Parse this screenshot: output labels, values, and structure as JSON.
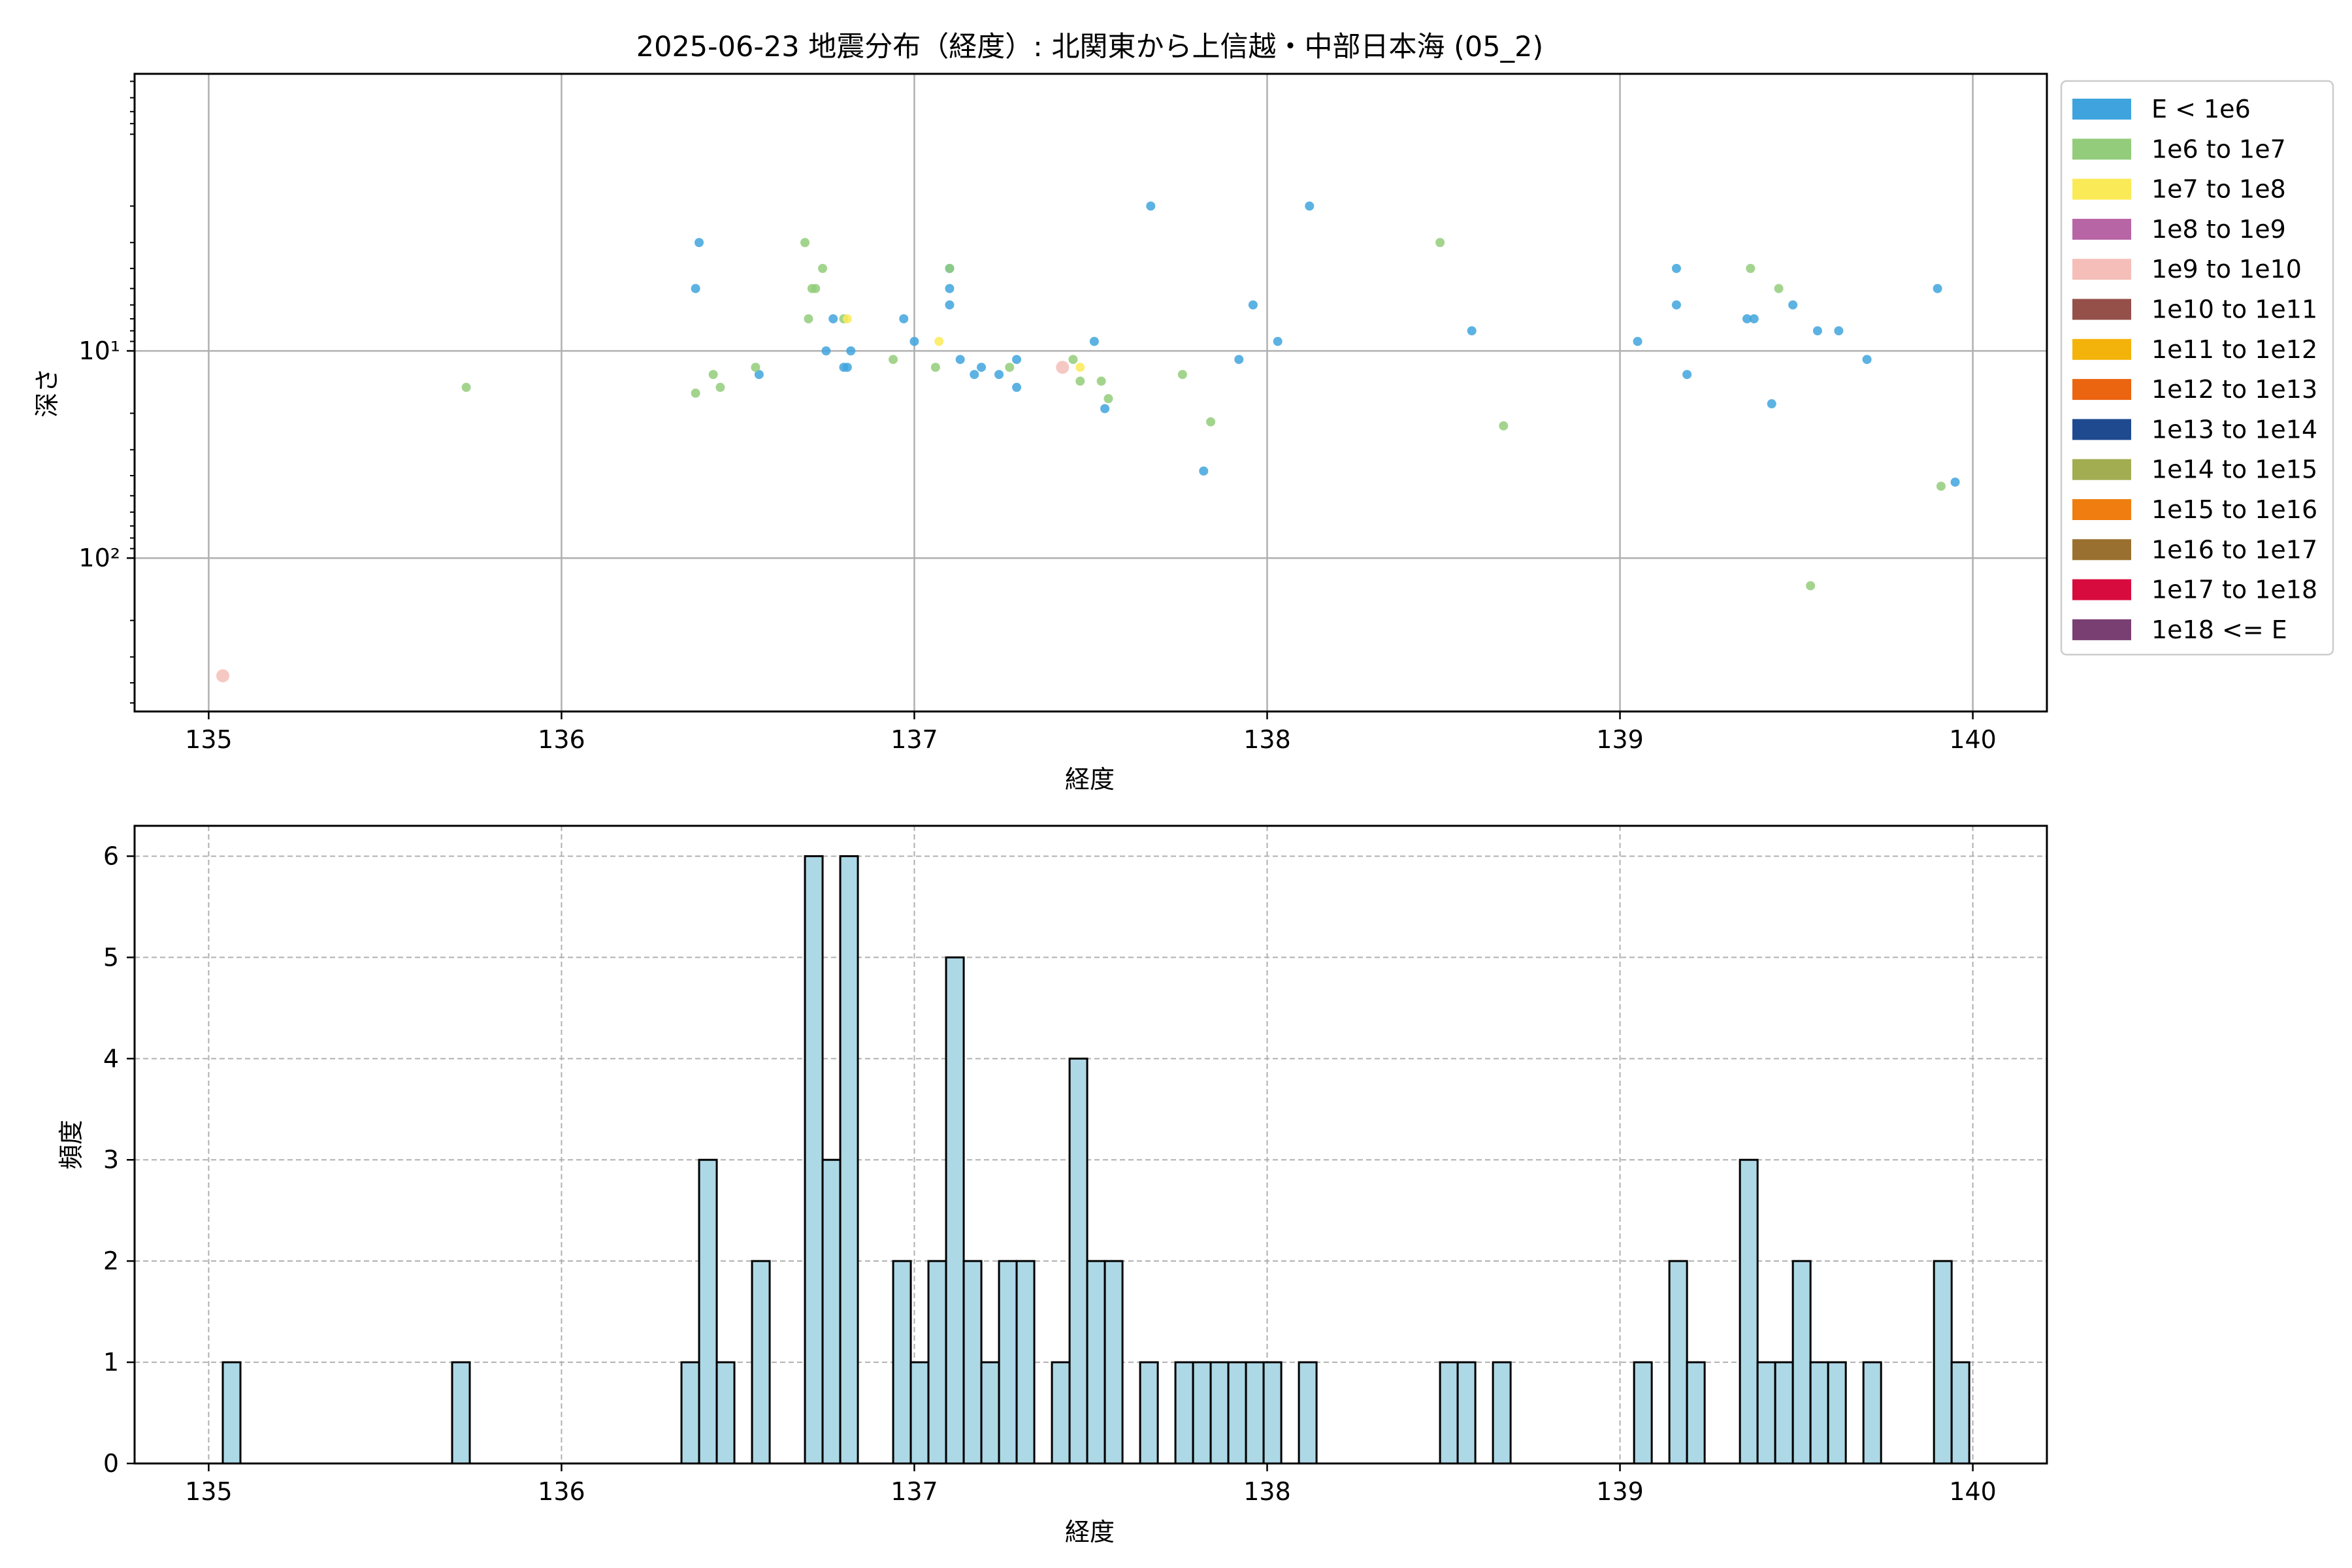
{
  "chart_data": [
    {
      "type": "scatter",
      "title": "2025-06-23 地震分布（経度）: 北関東から上信越・中部日本海 (05_2)",
      "xlabel": "経度",
      "ylabel": "深さ",
      "xlim": [
        134.79,
        140.21
      ],
      "ylim": [
        550,
        0.46
      ],
      "yscale": "log",
      "y_inverted": true,
      "xticks": [
        135,
        136,
        137,
        138,
        139,
        140
      ],
      "yticks": [
        {
          "value": 10,
          "label": "10¹"
        },
        {
          "value": 100,
          "label": "10²"
        }
      ],
      "grid": true,
      "legend": {
        "placement": "outside-right",
        "entries": [
          {
            "label": "E < 1e6",
            "color": "#3fa4dd"
          },
          {
            "label": "1e6 to 1e7",
            "color": "#93cc7a"
          },
          {
            "label": "1e7 to 1e8",
            "color": "#fbea58"
          },
          {
            "label": "1e8 to 1e9",
            "color": "#b865a6"
          },
          {
            "label": "1e9 to 1e10",
            "color": "#f5beb9"
          },
          {
            "label": "1e10 to 1e11",
            "color": "#955049"
          },
          {
            "label": "1e11 to 1e12",
            "color": "#f4b30b"
          },
          {
            "label": "1e12 to 1e13",
            "color": "#eb6410"
          },
          {
            "label": "1e13 to 1e14",
            "color": "#1f4a90"
          },
          {
            "label": "1e14 to 1e15",
            "color": "#a2ad52"
          },
          {
            "label": "1e15 to 1e16",
            "color": "#f07d0f"
          },
          {
            "label": "1e16 to 1e17",
            "color": "#997030"
          },
          {
            "label": "1e17 to 1e18",
            "color": "#d80b3e"
          },
          {
            "label": "1e18 <= E",
            "color": "#793f73"
          }
        ]
      },
      "series": [
        {
          "class": 0,
          "points": [
            [
              136.39,
              3.0
            ],
            [
              136.38,
              5.0
            ],
            [
              136.56,
              13.0
            ],
            [
              136.75,
              10.0
            ],
            [
              136.77,
              7.0
            ],
            [
              136.8,
              12.0
            ],
            [
              136.81,
              12.0
            ],
            [
              136.82,
              10.0
            ],
            [
              136.97,
              7.0
            ],
            [
              137.0,
              9.0
            ],
            [
              137.1,
              6.0
            ],
            [
              137.1,
              5.0
            ],
            [
              137.1,
              4.0
            ],
            [
              137.13,
              11.0
            ],
            [
              137.17,
              13.0
            ],
            [
              137.19,
              12.0
            ],
            [
              137.24,
              13.0
            ],
            [
              137.29,
              11.0
            ],
            [
              137.29,
              15.0
            ],
            [
              137.51,
              9.0
            ],
            [
              137.54,
              19.0
            ],
            [
              137.67,
              2.0
            ],
            [
              137.82,
              38.0
            ],
            [
              137.92,
              11.0
            ],
            [
              137.96,
              6.0
            ],
            [
              138.03,
              9.0
            ],
            [
              138.12,
              2.0
            ],
            [
              138.58,
              8.0
            ],
            [
              139.05,
              9.0
            ],
            [
              139.16,
              4.0
            ],
            [
              139.16,
              6.0
            ],
            [
              139.19,
              13.0
            ],
            [
              139.36,
              7.0
            ],
            [
              139.38,
              7.0
            ],
            [
              139.43,
              18.0
            ],
            [
              139.49,
              6.0
            ],
            [
              139.56,
              8.0
            ],
            [
              139.62,
              8.0
            ],
            [
              139.7,
              11.0
            ],
            [
              139.9,
              5.0
            ],
            [
              139.95,
              43.0
            ]
          ]
        },
        {
          "class": 1,
          "points": [
            [
              135.73,
              15.0
            ],
            [
              136.38,
              16.0
            ],
            [
              136.43,
              13.0
            ],
            [
              136.45,
              15.0
            ],
            [
              136.55,
              12.0
            ],
            [
              136.69,
              3.0
            ],
            [
              136.7,
              7.0
            ],
            [
              136.71,
              5.0
            ],
            [
              136.72,
              5.0
            ],
            [
              136.74,
              4.0
            ],
            [
              136.8,
              7.0
            ],
            [
              136.94,
              11.0
            ],
            [
              137.06,
              12.0
            ],
            [
              137.1,
              4.0
            ],
            [
              137.27,
              12.0
            ],
            [
              137.45,
              11.0
            ],
            [
              137.47,
              14.0
            ],
            [
              137.53,
              14.0
            ],
            [
              137.55,
              17.0
            ],
            [
              137.76,
              13.0
            ],
            [
              137.84,
              22.0
            ],
            [
              138.49,
              3.0
            ],
            [
              138.67,
              23.0
            ],
            [
              139.37,
              4.0
            ],
            [
              139.45,
              5.0
            ],
            [
              139.54,
              136.0
            ],
            [
              139.91,
              45.0
            ]
          ]
        },
        {
          "class": 2,
          "points": [
            [
              136.81,
              7.0
            ],
            [
              137.07,
              9.0
            ],
            [
              137.47,
              12.0
            ]
          ]
        },
        {
          "class": 4,
          "points": [
            [
              135.04,
              370.0
            ],
            [
              137.42,
              12.0
            ]
          ]
        }
      ]
    },
    {
      "type": "bar",
      "subtype": "histogram",
      "xlabel": "経度",
      "ylabel": "頻度",
      "xlim": [
        134.79,
        140.21
      ],
      "ylim": [
        0,
        6.3
      ],
      "xticks": [
        135,
        136,
        137,
        138,
        139,
        140
      ],
      "yticks": [
        0,
        1,
        2,
        3,
        4,
        5,
        6
      ],
      "grid": true,
      "bin_width": 0.05,
      "bar_color": "#add8e6",
      "edge_color": "#000000",
      "bins": [
        [
          135.04,
          1
        ],
        [
          135.69,
          1
        ],
        [
          136.34,
          1
        ],
        [
          136.39,
          3
        ],
        [
          136.44,
          1
        ],
        [
          136.54,
          2
        ],
        [
          136.69,
          6
        ],
        [
          136.74,
          3
        ],
        [
          136.79,
          6
        ],
        [
          136.94,
          2
        ],
        [
          136.99,
          1
        ],
        [
          137.04,
          2
        ],
        [
          137.09,
          5
        ],
        [
          137.14,
          2
        ],
        [
          137.19,
          1
        ],
        [
          137.24,
          2
        ],
        [
          137.29,
          2
        ],
        [
          137.39,
          1
        ],
        [
          137.44,
          4
        ],
        [
          137.49,
          2
        ],
        [
          137.54,
          2
        ],
        [
          137.64,
          1
        ],
        [
          137.74,
          1
        ],
        [
          137.79,
          1
        ],
        [
          137.84,
          1
        ],
        [
          137.89,
          1
        ],
        [
          137.94,
          1
        ],
        [
          137.99,
          1
        ],
        [
          138.09,
          1
        ],
        [
          138.49,
          1
        ],
        [
          138.54,
          1
        ],
        [
          138.64,
          1
        ],
        [
          139.04,
          1
        ],
        [
          139.14,
          2
        ],
        [
          139.19,
          1
        ],
        [
          139.34,
          3
        ],
        [
          139.39,
          1
        ],
        [
          139.44,
          1
        ],
        [
          139.49,
          2
        ],
        [
          139.54,
          1
        ],
        [
          139.59,
          1
        ],
        [
          139.69,
          1
        ],
        [
          139.89,
          2
        ],
        [
          139.94,
          1
        ]
      ]
    }
  ]
}
